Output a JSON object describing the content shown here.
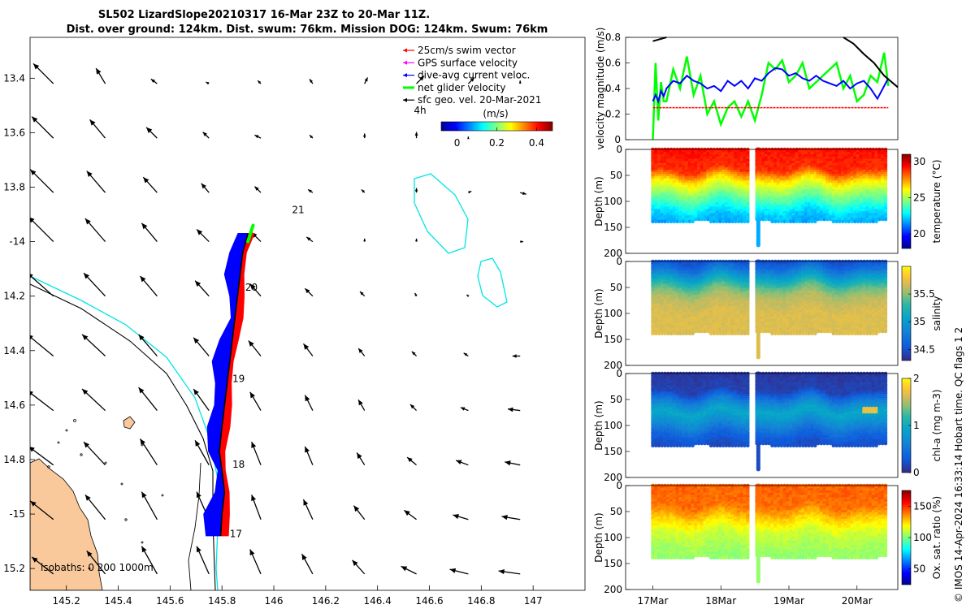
{
  "title_line1": "SL502 LizardSlope20210317 16-Mar 23Z to 20-Mar 11Z.",
  "title_line2": "Dist. over ground: 124km. Dist. swum: 76km. Mission DOG: 124km. Swum: 76km",
  "footer_text": "© IMOS 14-Apr-2024 16:33:14 Hobart time. QC flags 1  2",
  "colors": {
    "swim": "#ff0000",
    "gps": "#ff00ff",
    "diveavg": "#0000ff",
    "net": "#00ff00",
    "sfc": "#000000",
    "coast": "#00e5e5",
    "land": "#f9c99b",
    "track_red": "#ff0000",
    "track_blue": "#0000ff"
  },
  "chart_data": [
    {
      "id": "map",
      "type": "scatter",
      "xlabel": "",
      "ylabel": "",
      "xlim": [
        145.06,
        147.2
      ],
      "ylim": [
        -15.28,
        -13.25
      ],
      "xticks": [
        145.2,
        145.4,
        145.6,
        145.8,
        146,
        146.2,
        146.4,
        146.6,
        146.8,
        147
      ],
      "xtick_labels": [
        "145.2",
        "145.4",
        "145.6",
        "145.8",
        "146",
        "146.2",
        "146.4",
        "146.6",
        "146.8",
        "147"
      ],
      "yticks": [
        -13.4,
        -13.6,
        -13.8,
        -14,
        -14.2,
        -14.4,
        -14.6,
        -14.8,
        -15,
        -15.2
      ],
      "ytick_labels": [
        "13.4",
        "13.6",
        "13.8",
        "-14",
        "14.2",
        "14.4",
        "14.6",
        "14.8",
        "-15",
        "15.2"
      ],
      "legend": [
        {
          "label": "25cm/s swim vector",
          "color_key": "swim"
        },
        {
          "label": "GPS surface velocity",
          "color_key": "gps"
        },
        {
          "label": "dive-avg current veloc.",
          "color_key": "diveavg"
        },
        {
          "label": "net glider velocity",
          "color_key": "net"
        },
        {
          "label": "sfc geo. vel. 20-Mar-2021",
          "color_key": "sfc"
        }
      ],
      "speed_colorbar": {
        "title": "(m/s)",
        "range": [
          -0.08,
          0.48
        ],
        "ticks": [
          0,
          0.2,
          0.4
        ],
        "tick_labels": [
          "0",
          "0.2",
          "0.4"
        ],
        "marker": "4h"
      },
      "isobath_label": "isobaths: 0   200  1000m",
      "day_labels": [
        {
          "text": "17",
          "lon": 145.83,
          "lat": -15.085
        },
        {
          "text": "18",
          "lon": 145.84,
          "lat": -14.83
        },
        {
          "text": "19",
          "lon": 145.84,
          "lat": -14.515
        },
        {
          "text": "20",
          "lon": 145.89,
          "lat": -14.18
        },
        {
          "text": "21",
          "lon": 146.07,
          "lat": -13.895
        }
      ],
      "glider_track": [
        [
          145.795,
          -15.08
        ],
        [
          145.8,
          -15.0
        ],
        [
          145.81,
          -14.92
        ],
        [
          145.8,
          -14.84
        ],
        [
          145.79,
          -14.77
        ],
        [
          145.8,
          -14.68
        ],
        [
          145.81,
          -14.6
        ],
        [
          145.82,
          -14.52
        ],
        [
          145.83,
          -14.44
        ],
        [
          145.84,
          -14.36
        ],
        [
          145.85,
          -14.28
        ],
        [
          145.86,
          -14.2
        ],
        [
          145.87,
          -14.12
        ],
        [
          145.88,
          -14.04
        ],
        [
          145.9,
          -13.97
        ]
      ],
      "net_velocity_segment": [
        [
          145.9,
          -14.0
        ],
        [
          145.92,
          -13.94
        ]
      ],
      "current_vectors_grid": {
        "lons": [
          145.15,
          145.35,
          145.55,
          145.75,
          145.95,
          146.15,
          146.35,
          146.55,
          146.75,
          146.95
        ],
        "lats": [
          -13.42,
          -13.62,
          -13.82,
          -14.0,
          -14.2,
          -14.42,
          -14.62,
          -14.82,
          -15.02,
          -15.22
        ],
        "u": [
          [
            -0.13,
            -0.06,
            -0.04,
            -0.02,
            -0.02,
            -0.02,
            0.02,
            0.05,
            0.04,
            0.0
          ],
          [
            -0.14,
            -0.1,
            -0.07,
            -0.04,
            -0.04,
            -0.02,
            0.0,
            0.0,
            0.0,
            0.0
          ],
          [
            -0.15,
            -0.12,
            -0.09,
            -0.05,
            -0.04,
            -0.03,
            -0.02,
            0.0,
            0.02,
            0.04
          ],
          [
            -0.16,
            -0.13,
            -0.1,
            -0.08,
            -0.06,
            -0.04,
            0.0,
            0.0,
            0.0,
            0.02
          ],
          [
            -0.17,
            -0.14,
            -0.11,
            -0.09,
            -0.07,
            -0.05,
            -0.03,
            -0.01,
            -0.01,
            0.0
          ],
          [
            -0.17,
            -0.15,
            -0.12,
            -0.1,
            -0.08,
            -0.06,
            -0.04,
            -0.03,
            -0.03,
            -0.05
          ],
          [
            -0.17,
            -0.15,
            -0.12,
            -0.1,
            -0.07,
            -0.05,
            -0.04,
            -0.04,
            -0.05,
            -0.08
          ],
          [
            -0.16,
            -0.14,
            -0.11,
            -0.09,
            -0.06,
            -0.05,
            -0.05,
            -0.06,
            -0.08,
            -0.1
          ],
          [
            -0.15,
            -0.13,
            -0.1,
            -0.08,
            -0.06,
            -0.06,
            -0.07,
            -0.08,
            -0.1,
            -0.12
          ],
          [
            -0.14,
            -0.12,
            -0.1,
            -0.08,
            -0.07,
            -0.07,
            -0.08,
            -0.1,
            -0.12,
            -0.14
          ]
        ],
        "v": [
          [
            0.13,
            0.1,
            0.03,
            0.01,
            0.02,
            0.03,
            0.04,
            0.05,
            0.04,
            0.02
          ],
          [
            0.14,
            0.12,
            0.07,
            0.04,
            0.02,
            0.02,
            0.03,
            0.04,
            0.01,
            0.0
          ],
          [
            0.15,
            0.14,
            0.1,
            0.06,
            0.04,
            0.02,
            0.02,
            0.03,
            0.01,
            -0.01
          ],
          [
            0.16,
            0.15,
            0.12,
            0.08,
            0.06,
            0.03,
            0.02,
            0.02,
            0.0,
            0.0
          ],
          [
            0.15,
            0.15,
            0.13,
            0.1,
            0.08,
            0.05,
            0.03,
            0.02,
            0.01,
            0.0
          ],
          [
            0.14,
            0.14,
            0.14,
            0.12,
            0.1,
            0.08,
            0.05,
            0.03,
            0.02,
            0.0
          ],
          [
            0.13,
            0.14,
            0.15,
            0.14,
            0.12,
            0.1,
            0.07,
            0.04,
            0.02,
            0.01
          ],
          [
            0.12,
            0.15,
            0.17,
            0.16,
            0.15,
            0.12,
            0.08,
            0.05,
            0.03,
            0.02
          ],
          [
            0.12,
            0.16,
            0.18,
            0.18,
            0.16,
            0.13,
            0.09,
            0.06,
            0.03,
            0.02
          ],
          [
            0.11,
            0.15,
            0.18,
            0.18,
            0.16,
            0.13,
            0.09,
            0.05,
            0.03,
            0.02
          ]
        ]
      }
    },
    {
      "id": "velocity",
      "type": "line",
      "xlabel": "",
      "ylabel": "velocity magnitude (m/s)",
      "xlim": [
        16.6,
        20.6
      ],
      "ylim": [
        0,
        0.8
      ],
      "yticks": [
        0,
        0.2,
        0.4,
        0.6,
        0.8
      ],
      "ytick_labels": [
        "0",
        "0.2",
        "0.4",
        "0.6",
        "0.8"
      ],
      "x": [
        17.0,
        17.04,
        17.08,
        17.12,
        17.16,
        17.2,
        17.3,
        17.4,
        17.5,
        17.6,
        17.7,
        17.8,
        17.9,
        18.0,
        18.1,
        18.2,
        18.3,
        18.4,
        18.5,
        18.6,
        18.7,
        18.8,
        18.9,
        19.0,
        19.1,
        19.2,
        19.3,
        19.4,
        19.5,
        19.6,
        19.7,
        19.8,
        19.9,
        20.0,
        20.1,
        20.2,
        20.3,
        20.4,
        20.46
      ],
      "series": [
        {
          "name": "net glider velocity",
          "color_key": "net",
          "values": [
            0.0,
            0.6,
            0.15,
            0.45,
            0.3,
            0.3,
            0.55,
            0.4,
            0.65,
            0.35,
            0.5,
            0.2,
            0.3,
            0.12,
            0.25,
            0.3,
            0.18,
            0.3,
            0.15,
            0.35,
            0.6,
            0.55,
            0.62,
            0.45,
            0.5,
            0.6,
            0.4,
            0.45,
            0.5,
            0.55,
            0.6,
            0.4,
            0.5,
            0.3,
            0.35,
            0.5,
            0.45,
            0.68,
            0.42
          ]
        },
        {
          "name": "dive-avg current veloc.",
          "color_key": "diveavg",
          "values": [
            0.3,
            0.35,
            0.3,
            0.38,
            0.34,
            0.4,
            0.46,
            0.44,
            0.5,
            0.46,
            0.44,
            0.4,
            0.42,
            0.38,
            0.46,
            0.42,
            0.46,
            0.4,
            0.48,
            0.46,
            0.52,
            0.56,
            0.55,
            0.5,
            0.52,
            0.48,
            0.46,
            0.5,
            0.46,
            0.44,
            0.42,
            0.46,
            0.4,
            0.44,
            0.46,
            0.4,
            0.32,
            0.42,
            0.48
          ]
        },
        {
          "name": "25cm/s swim vector",
          "color_key": "swim",
          "values": [
            0.25,
            0.25,
            0.25,
            0.25,
            0.25,
            0.25,
            0.25,
            0.25,
            0.25,
            0.25,
            0.25,
            0.25,
            0.25,
            0.25,
            0.25,
            0.25,
            0.25,
            0.25,
            0.25,
            0.25,
            0.25,
            0.25,
            0.25,
            0.25,
            0.25,
            0.25,
            0.25,
            0.25,
            0.25,
            0.25,
            0.25,
            0.25,
            0.25,
            0.25,
            0.25,
            0.25,
            0.25,
            0.25,
            0.25
          ]
        },
        {
          "name": "sfc geo. vel.",
          "color_key": "sfc",
          "x": [
            17.0,
            17.05,
            17.1,
            17.15,
            17.2,
            19.8,
            19.95,
            20.1,
            20.25,
            20.4,
            20.6
          ],
          "values": [
            0.77,
            0.78,
            0.79,
            0.79,
            0.8,
            0.8,
            0.75,
            0.67,
            0.6,
            0.5,
            0.41
          ]
        }
      ]
    },
    {
      "id": "temperature",
      "type": "heatmap",
      "xlabel": "",
      "ylabel": "Depth (m)",
      "colorbar_label": "temperature (°C)",
      "ylim": [
        200,
        0
      ],
      "xlim": [
        16.6,
        20.6
      ],
      "yticks": [
        0,
        50,
        100,
        150,
        200
      ],
      "ytick_labels": [
        "0",
        "50",
        "100",
        "150",
        "200"
      ],
      "clim": [
        18,
        31
      ],
      "cbar_ticks": [
        20,
        25,
        30
      ],
      "cbar_tick_labels": [
        "20",
        "25",
        "30"
      ],
      "depth_profile": [
        {
          "depth": 0,
          "value": 29.2
        },
        {
          "depth": 40,
          "value": 28.8
        },
        {
          "depth": 60,
          "value": 26.5
        },
        {
          "depth": 80,
          "value": 25.0
        },
        {
          "depth": 100,
          "value": 23.8
        },
        {
          "depth": 120,
          "value": 22.5
        },
        {
          "depth": 140,
          "value": 21.8
        }
      ],
      "dive_depth_max": 140,
      "deep_dive": {
        "time": 18.55,
        "depth": 185
      }
    },
    {
      "id": "salinity",
      "type": "heatmap",
      "xlabel": "",
      "ylabel": "Depth (m)",
      "colorbar_label": "salinity",
      "ylim": [
        200,
        0
      ],
      "xlim": [
        16.6,
        20.6
      ],
      "yticks": [
        0,
        50,
        100,
        150,
        200
      ],
      "ytick_labels": [
        "0",
        "50",
        "100",
        "150",
        "200"
      ],
      "clim": [
        34.3,
        36.0
      ],
      "cbar_ticks": [
        34.5,
        35,
        35.5
      ],
      "cbar_tick_labels": [
        "34.5",
        "35",
        "35.5"
      ],
      "depth_profile": [
        {
          "depth": 0,
          "value": 34.5
        },
        {
          "depth": 15,
          "value": 34.7
        },
        {
          "depth": 30,
          "value": 35.0
        },
        {
          "depth": 50,
          "value": 35.4
        },
        {
          "depth": 70,
          "value": 35.6
        },
        {
          "depth": 100,
          "value": 35.7
        },
        {
          "depth": 140,
          "value": 35.7
        }
      ],
      "dive_depth_max": 140,
      "deep_dive": {
        "time": 18.55,
        "depth": 185
      }
    },
    {
      "id": "chla",
      "type": "heatmap",
      "xlabel": "",
      "ylabel": "Depth (m)",
      "colorbar_label": "chl-a (mg m-3)",
      "ylim": [
        200,
        0
      ],
      "xlim": [
        16.6,
        20.6
      ],
      "yticks": [
        0,
        50,
        100,
        150,
        200
      ],
      "ytick_labels": [
        "0",
        "50",
        "100",
        "150",
        "200"
      ],
      "clim": [
        0,
        2
      ],
      "cbar_ticks": [
        0,
        1,
        2
      ],
      "cbar_tick_labels": [
        "0",
        "1",
        "2"
      ],
      "depth_profile": [
        {
          "depth": 0,
          "value": 0.08
        },
        {
          "depth": 35,
          "value": 0.15
        },
        {
          "depth": 55,
          "value": 0.6
        },
        {
          "depth": 75,
          "value": 0.95
        },
        {
          "depth": 95,
          "value": 0.7
        },
        {
          "depth": 120,
          "value": 0.35
        },
        {
          "depth": 140,
          "value": 0.2
        }
      ],
      "dive_depth_max": 140,
      "deep_dive": {
        "time": 18.55,
        "depth": 185
      }
    },
    {
      "id": "oxygen",
      "type": "heatmap",
      "xlabel": "",
      "ylabel": "Depth (m)",
      "colorbar_label": "Ox. sat. ratio (%)",
      "ylim": [
        200,
        0
      ],
      "xlim": [
        16.6,
        20.6
      ],
      "yticks": [
        0,
        50,
        100,
        150,
        200
      ],
      "ytick_labels": [
        "0",
        "50",
        "100",
        "150",
        "200"
      ],
      "xticks": [
        17,
        18,
        19,
        20
      ],
      "xtick_labels": [
        "17Mar",
        "18Mar",
        "19Mar",
        "20Mar"
      ],
      "clim": [
        25,
        175
      ],
      "cbar_ticks": [
        50,
        100,
        150
      ],
      "cbar_tick_labels": [
        "50",
        "100",
        "150"
      ],
      "depth_profile": [
        {
          "depth": 0,
          "value": 142
        },
        {
          "depth": 40,
          "value": 140
        },
        {
          "depth": 65,
          "value": 125
        },
        {
          "depth": 90,
          "value": 112
        },
        {
          "depth": 120,
          "value": 105
        },
        {
          "depth": 140,
          "value": 103
        }
      ],
      "dive_depth_max": 140,
      "deep_dive": {
        "time": 18.55,
        "depth": 185
      }
    }
  ]
}
